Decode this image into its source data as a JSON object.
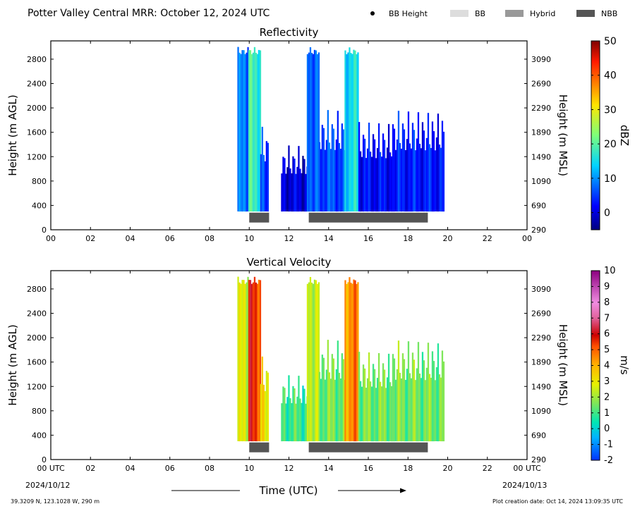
{
  "header": {
    "title": "Potter Valley Central MRR:  October 12, 2024 UTC",
    "legend": [
      {
        "label": "BB Height",
        "kind": "dot",
        "color": "#000000"
      },
      {
        "label": "BB",
        "kind": "swatch",
        "color": "#dddddd"
      },
      {
        "label": "Hybrid",
        "kind": "swatch",
        "color": "#999999"
      },
      {
        "label": "NBB",
        "kind": "swatch",
        "color": "#555555"
      }
    ]
  },
  "footer": {
    "location": "39.3209 N, 123.1028 W, 290 m",
    "creation": "Plot creation date: Oct 14, 2024 13:09:35 UTC",
    "xlabel": "Time (UTC)",
    "start_date": "2024/10/12",
    "end_date": "2024/10/13"
  },
  "colors": {
    "nbb_bar": "#555555"
  },
  "chart_data": [
    {
      "type": "heatmap",
      "title": "Reflectivity",
      "ylabel": "Height (m AGL)",
      "ylabel_right": "Height (m MSL)",
      "xlim": [
        0,
        24
      ],
      "ylim": [
        0,
        3100
      ],
      "x_ticks": [
        "00",
        "02",
        "04",
        "06",
        "08",
        "10",
        "12",
        "14",
        "16",
        "18",
        "20",
        "22",
        "00"
      ],
      "y_ticks": [
        0,
        400,
        800,
        1200,
        1600,
        2000,
        2400,
        2800
      ],
      "y_ticks_right": [
        290,
        690,
        1090,
        1490,
        1890,
        2290,
        2690,
        3090
      ],
      "colorbar": {
        "label": "dBZ",
        "min": -5,
        "max": 50,
        "ticks": [
          0,
          10,
          20,
          30,
          40,
          50
        ]
      },
      "bright_band_type_bars": [
        {
          "start": 10.0,
          "end": 11.0,
          "type": "NBB"
        },
        {
          "start": 13.0,
          "end": 19.0,
          "type": "NBB"
        }
      ],
      "echo_columns": [
        {
          "start": 9.4,
          "end": 9.95,
          "top": 3000,
          "base": 300,
          "value": 8
        },
        {
          "start": 9.95,
          "end": 10.55,
          "top": 3000,
          "base": 300,
          "value": 18
        },
        {
          "start": 10.55,
          "end": 10.95,
          "top": 1700,
          "base": 300,
          "value": 5
        },
        {
          "start": 11.6,
          "end": 12.9,
          "top": 1400,
          "base": 300,
          "value": 0
        },
        {
          "start": 12.9,
          "end": 13.5,
          "top": 3000,
          "base": 300,
          "value": 8
        },
        {
          "start": 13.5,
          "end": 14.8,
          "top": 2000,
          "base": 300,
          "value": 6
        },
        {
          "start": 14.8,
          "end": 15.5,
          "top": 3000,
          "base": 300,
          "value": 15
        },
        {
          "start": 15.5,
          "end": 17.2,
          "top": 1800,
          "base": 300,
          "value": 2
        },
        {
          "start": 17.2,
          "end": 19.8,
          "top": 2000,
          "base": 300,
          "value": 3
        }
      ]
    },
    {
      "type": "heatmap",
      "title": "Vertical Velocity",
      "ylabel": "Height (m AGL)",
      "ylabel_right": "Height (m MSL)",
      "xlim": [
        0,
        24
      ],
      "ylim": [
        0,
        3100
      ],
      "x_ticks": [
        "00 UTC",
        "02",
        "04",
        "06",
        "08",
        "10",
        "12",
        "14",
        "16",
        "18",
        "20",
        "22",
        "00 UTC"
      ],
      "y_ticks": [
        0,
        400,
        800,
        1200,
        1600,
        2000,
        2400,
        2800
      ],
      "y_ticks_right": [
        290,
        690,
        1090,
        1490,
        1890,
        2290,
        2690,
        3090
      ],
      "colorbar": {
        "label": "m/s",
        "min": -2,
        "max": 10,
        "ticks": [
          -2,
          -1,
          0,
          1,
          2,
          3,
          4,
          5,
          6,
          7,
          8,
          9,
          10
        ]
      },
      "bright_band_type_bars": [
        {
          "start": 10.0,
          "end": 11.0,
          "type": "NBB"
        },
        {
          "start": 13.0,
          "end": 19.0,
          "type": "NBB"
        }
      ],
      "echo_columns": [
        {
          "start": 9.4,
          "end": 9.95,
          "top": 3000,
          "base": 300,
          "value": 2.5
        },
        {
          "start": 9.95,
          "end": 10.55,
          "top": 3000,
          "base": 300,
          "value": 5.5
        },
        {
          "start": 10.55,
          "end": 10.95,
          "top": 1700,
          "base": 300,
          "value": 3
        },
        {
          "start": 11.6,
          "end": 12.9,
          "top": 1400,
          "base": 300,
          "value": 1
        },
        {
          "start": 12.9,
          "end": 13.5,
          "top": 3000,
          "base": 300,
          "value": 2.5
        },
        {
          "start": 13.5,
          "end": 14.8,
          "top": 2000,
          "base": 300,
          "value": 1.5
        },
        {
          "start": 14.8,
          "end": 15.5,
          "top": 3000,
          "base": 300,
          "value": 4.5
        },
        {
          "start": 15.5,
          "end": 17.2,
          "top": 1800,
          "base": 300,
          "value": 1.5
        },
        {
          "start": 17.2,
          "end": 19.8,
          "top": 2000,
          "base": 300,
          "value": 1.5
        }
      ]
    }
  ]
}
